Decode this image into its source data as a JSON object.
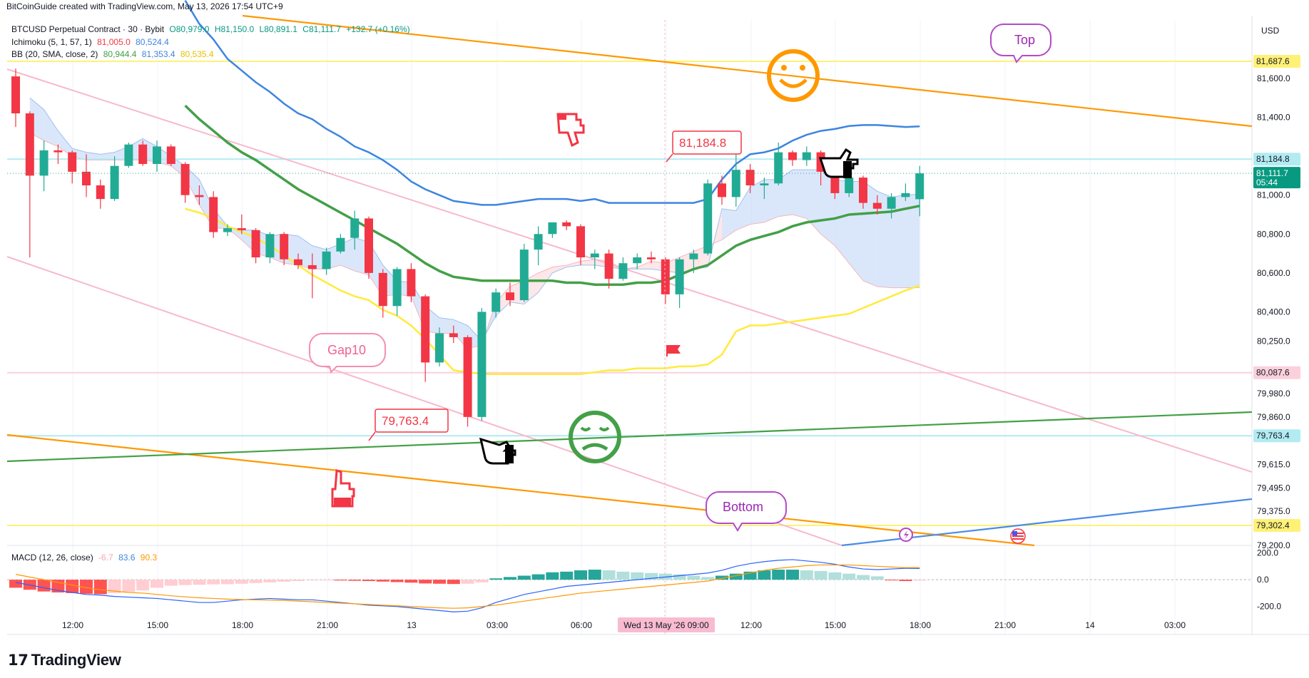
{
  "header": {
    "credit": "BitCoinGuide created with TradingView.com, May 13, 2026 17:54 UTC+9",
    "currency": "USD",
    "brand": "TradingView"
  },
  "legend": {
    "symbol": "BTCUSD Perpetual Contract · 30 · Bybit",
    "ohlc": {
      "o": "O80,979.0",
      "h": "H81,150.0",
      "l": "L80,891.1",
      "c": "C81,111.7",
      "chg": "+132.7 (+0.16%)"
    },
    "ichimoku": {
      "name": "Ichimoku (5, 1, 57, 1)",
      "v1": "81,005.0",
      "v2": "80,524.4"
    },
    "bb": {
      "name": "BB (20, SMA, close, 2)",
      "v1": "80,944.4",
      "v2": "81,353.4",
      "v3": "80,535.4"
    },
    "macd": {
      "name": "MACD (12, 26, close)",
      "v1": "-6.7",
      "v2": "83.6",
      "v3": "90.3"
    }
  },
  "colors": {
    "up": "#22ab94",
    "down": "#f23645",
    "bb_basis": "#43a047",
    "bb_upper": "#3d85e0",
    "bb_lower": "#ffeb3b",
    "cloud_bull": "#bbd3f5",
    "cloud_bear": "#fcd3d6",
    "orange": "#ff9800",
    "pink": "#f7b9cc",
    "green": "#43a047",
    "blue": "#4a8be8",
    "yellow": "#fff176",
    "cyan": "#b2ebf2"
  },
  "chart_data": {
    "type": "candlestick",
    "timeframe": "30",
    "ylim": [
      79200,
      81900
    ],
    "y_ticks": [
      81600,
      81400,
      81184.8,
      81000,
      80800,
      80600,
      80400,
      80250,
      80087.6,
      79980,
      79860,
      79615,
      79495,
      79375,
      79302.4,
      79200
    ],
    "y_tick_labels": [
      "81,600.0",
      "81,400.0",
      "81,184.8",
      "81,000.0",
      "80,800.0",
      "80,600.0",
      "80,400.0",
      "80,250.0",
      "80,087.6",
      "79,980.0",
      "79,860.0",
      "79,615.0",
      "79,495.0",
      "79,375.0",
      "79,302.4",
      "79,200.0"
    ],
    "x_tick_labels": [
      "12:00",
      "15:00",
      "18:00",
      "21:00",
      "13",
      "03:00",
      "06:00",
      "",
      "12:00",
      "15:00",
      "18:00",
      "21:00",
      "14",
      "03:00"
    ],
    "x_cursor_label": "Wed 13 May '26  09:00",
    "price_labels": [
      {
        "value": 81687.6,
        "text": "81,687.6",
        "bg": "#fff176",
        "fg": "#131722"
      },
      {
        "value": 81184.8,
        "text": "81,184.8",
        "bg": "#b2ebf2",
        "fg": "#131722"
      },
      {
        "value": 81111.7,
        "text": "81,111.7",
        "sub": "05:44",
        "bg": "#089981",
        "fg": "#ffffff"
      },
      {
        "value": 80087.6,
        "text": "80,087.6",
        "bg": "#fbd0dc",
        "fg": "#131722"
      },
      {
        "value": 79763.4,
        "text": "79,763.4",
        "bg": "#b2ebf2",
        "fg": "#131722"
      },
      {
        "value": 79302.4,
        "text": "79,302.4",
        "bg": "#fff176",
        "fg": "#131722"
      }
    ],
    "horizontal_lines": [
      {
        "value": 81687.6,
        "color": "#fff176"
      },
      {
        "value": 81184.8,
        "color": "#b2ebf2"
      },
      {
        "value": 80087.6,
        "color": "#fbd0dc"
      },
      {
        "value": 79763.4,
        "color": "#b2ebf2"
      },
      {
        "value": 79302.4,
        "color": "#fff176"
      }
    ],
    "candles": [
      [
        81610,
        81650,
        81350,
        81420
      ],
      [
        81420,
        81430,
        80680,
        81100
      ],
      [
        81100,
        81280,
        81020,
        81230
      ],
      [
        81230,
        81260,
        81160,
        81220
      ],
      [
        81220,
        81230,
        81060,
        81120
      ],
      [
        81120,
        81210,
        80990,
        81050
      ],
      [
        81050,
        81080,
        80930,
        80980
      ],
      [
        80980,
        81200,
        80970,
        81150
      ],
      [
        81150,
        81270,
        81140,
        81260
      ],
      [
        81260,
        81280,
        81150,
        81160
      ],
      [
        81160,
        81280,
        81120,
        81250
      ],
      [
        81250,
        81260,
        81150,
        81160
      ],
      [
        81160,
        81170,
        80960,
        81000
      ],
      [
        81000,
        81050,
        80950,
        80990
      ],
      [
        80990,
        81020,
        80780,
        80810
      ],
      [
        80810,
        80850,
        80790,
        80830
      ],
      [
        80830,
        80900,
        80800,
        80820
      ],
      [
        80820,
        80830,
        80650,
        80680
      ],
      [
        80680,
        80810,
        80650,
        80800
      ],
      [
        80800,
        80810,
        80640,
        80670
      ],
      [
        80670,
        80700,
        80620,
        80640
      ],
      [
        80640,
        80700,
        80470,
        80620
      ],
      [
        80620,
        80730,
        80590,
        80710
      ],
      [
        80710,
        80800,
        80700,
        80780
      ],
      [
        80780,
        80920,
        80720,
        80880
      ],
      [
        80880,
        80890,
        80570,
        80600
      ],
      [
        80600,
        80620,
        80370,
        80430
      ],
      [
        80430,
        80630,
        80380,
        80620
      ],
      [
        80620,
        80650,
        80450,
        80480
      ],
      [
        80480,
        80490,
        80040,
        80140
      ],
      [
        80140,
        80320,
        80120,
        80290
      ],
      [
        80290,
        80330,
        80240,
        80270
      ],
      [
        80270,
        80280,
        79810,
        79860
      ],
      [
        79860,
        80420,
        79840,
        80400
      ],
      [
        80400,
        80520,
        80370,
        80500
      ],
      [
        80500,
        80550,
        80430,
        80460
      ],
      [
        80460,
        80750,
        80450,
        80720
      ],
      [
        80720,
        80840,
        80640,
        80800
      ],
      [
        80800,
        80860,
        80780,
        80860
      ],
      [
        80860,
        80870,
        80820,
        80840
      ],
      [
        80840,
        80850,
        80640,
        80680
      ],
      [
        80680,
        80720,
        80620,
        80700
      ],
      [
        80700,
        80720,
        80520,
        80570
      ],
      [
        80570,
        80680,
        80560,
        80650
      ],
      [
        80650,
        80700,
        80620,
        80680
      ],
      [
        80680,
        80710,
        80650,
        80670
      ],
      [
        80670,
        80680,
        80440,
        80490
      ],
      [
        80490,
        80680,
        80420,
        80670
      ],
      [
        80670,
        80720,
        80600,
        80700
      ],
      [
        80700,
        81080,
        80690,
        81060
      ],
      [
        81060,
        81100,
        80950,
        80990
      ],
      [
        80990,
        81220,
        80940,
        81130
      ],
      [
        81130,
        81160,
        81010,
        81050
      ],
      [
        81050,
        81090,
        80980,
        81060
      ],
      [
        81060,
        81270,
        81050,
        81220
      ],
      [
        81220,
        81230,
        81150,
        81180
      ],
      [
        81180,
        81250,
        81150,
        81220
      ],
      [
        81220,
        81230,
        81050,
        81120
      ],
      [
        81120,
        81130,
        80980,
        81010
      ],
      [
        81010,
        81120,
        80990,
        81090
      ],
      [
        81090,
        81100,
        80930,
        80960
      ],
      [
        80960,
        81000,
        80900,
        80930
      ],
      [
        80930,
        81010,
        80880,
        80990
      ],
      [
        80990,
        81060,
        80970,
        81010
      ],
      [
        80979,
        81150,
        80891.1,
        81111.7
      ]
    ],
    "bb_upper": [
      null,
      null,
      null,
      null,
      null,
      null,
      null,
      null,
      null,
      null,
      null,
      null,
      82000,
      81880,
      81800,
      81700,
      81640,
      81580,
      81530,
      81470,
      81420,
      81390,
      81340,
      81300,
      81250,
      81220,
      81180,
      81130,
      81070,
      81030,
      81000,
      80970,
      80960,
      80950,
      80950,
      80960,
      80970,
      80980,
      80980,
      80980,
      80970,
      80980,
      80960,
      80960,
      80960,
      80960,
      80960,
      80960,
      80960,
      80980,
      81080,
      81160,
      81210,
      81220,
      81240,
      81280,
      81310,
      81330,
      81340,
      81355,
      81360,
      81360,
      81355,
      81350,
      81353.4
    ],
    "bb_lower": [
      null,
      null,
      null,
      null,
      null,
      null,
      null,
      null,
      null,
      null,
      null,
      null,
      80930,
      80910,
      80880,
      80840,
      80810,
      80780,
      80740,
      80690,
      80640,
      80590,
      80550,
      80510,
      80480,
      80460,
      80410,
      80380,
      80330,
      80260,
      80180,
      80100,
      80090,
      80080,
      80080,
      80080,
      80080,
      80080,
      80080,
      80080,
      80080,
      80090,
      80100,
      80100,
      80110,
      80110,
      80110,
      80120,
      80120,
      80130,
      80180,
      80300,
      80330,
      80330,
      80340,
      80350,
      80360,
      80370,
      80380,
      80390,
      80420,
      80450,
      80480,
      80510,
      80535.4
    ],
    "bb_basis": [
      null,
      null,
      null,
      null,
      null,
      null,
      null,
      null,
      null,
      null,
      null,
      null,
      81460,
      81390,
      81330,
      81270,
      81220,
      81180,
      81130,
      81080,
      81030,
      80990,
      80950,
      80910,
      80870,
      80830,
      80790,
      80750,
      80700,
      80650,
      80610,
      80580,
      80570,
      80560,
      80560,
      80560,
      80560,
      80560,
      80560,
      80550,
      80550,
      80540,
      80540,
      80540,
      80550,
      80550,
      80560,
      80590,
      80620,
      80640,
      80690,
      80740,
      80770,
      80790,
      80810,
      80840,
      80860,
      80870,
      80880,
      80900,
      80905,
      80910,
      80915,
      80930,
      80944.4
    ],
    "ichimoku_span_a": [
      null,
      81500,
      81440,
      81330,
      81240,
      81220,
      81210,
      81220,
      81250,
      81290,
      81250,
      81200,
      81150,
      81080,
      80930,
      80840,
      80820,
      80820,
      80790,
      80800,
      80790,
      80740,
      80720,
      80750,
      80780,
      80760,
      80640,
      80560,
      80550,
      80430,
      80370,
      80360,
      80330,
      80250,
      80380,
      80450,
      80440,
      80500,
      80600,
      80630,
      80640,
      80640,
      80630,
      80620,
      80620,
      80620,
      80610,
      80600,
      80620,
      80630,
      80930,
      80920,
      81040,
      81080,
      81080,
      81130,
      81130,
      81130,
      81080,
      81070,
      81070,
      81020,
      80990,
      81000,
      81005
    ],
    "ichimoku_span_b": [
      null,
      81320,
      81280,
      81250,
      81200,
      81180,
      81180,
      81180,
      81180,
      81180,
      81170,
      81150,
      81090,
      80950,
      80830,
      80830,
      80770,
      80700,
      80680,
      80650,
      80640,
      80620,
      80620,
      80640,
      80610,
      80590,
      80480,
      80490,
      80480,
      80300,
      80290,
      80290,
      80210,
      80230,
      80450,
      80530,
      80560,
      80600,
      80630,
      80640,
      80660,
      80670,
      80660,
      80620,
      80630,
      80660,
      80650,
      80680,
      80710,
      80740,
      80770,
      80820,
      80850,
      80860,
      80890,
      80900,
      80880,
      80800,
      80740,
      80650,
      80560,
      80530,
      80524,
      80524,
      80524.4
    ],
    "annotations": [
      {
        "type": "callout",
        "text": "Top"
      },
      {
        "type": "callout",
        "text": "Bottom"
      },
      {
        "type": "callout",
        "text": "Gap10"
      },
      {
        "type": "price_tag",
        "text": "81,184.8"
      },
      {
        "type": "price_tag",
        "text": "79,763.4"
      }
    ],
    "macd": {
      "ylim": [
        -260,
        240
      ],
      "ticks": [
        200,
        0,
        -200
      ],
      "tick_labels": [
        "200.0",
        "0.0",
        "-200.0"
      ],
      "histogram": [
        -60,
        -75,
        -88,
        -95,
        -100,
        -105,
        -108,
        -100,
        -90,
        -80,
        -60,
        -45,
        -40,
        -38,
        -35,
        -34,
        -30,
        -25,
        -20,
        -15,
        -10,
        -5,
        -4,
        -6,
        -8,
        -10,
        -14,
        -18,
        -22,
        -28,
        -30,
        -32,
        -30,
        -20,
        10,
        20,
        30,
        40,
        55,
        60,
        70,
        75,
        70,
        60,
        55,
        50,
        45,
        40,
        30,
        20,
        30,
        45,
        60,
        70,
        75,
        75,
        70,
        65,
        55,
        45,
        35,
        25,
        -5,
        -10,
        -6.7
      ],
      "macd": [
        -20,
        -40,
        -60,
        -80,
        -95,
        -110,
        -115,
        -125,
        -130,
        -135,
        -140,
        -150,
        -160,
        -170,
        -170,
        -160,
        -150,
        -145,
        -140,
        -145,
        -150,
        -150,
        -160,
        -170,
        -180,
        -190,
        -195,
        -200,
        -210,
        -220,
        -230,
        -240,
        -235,
        -210,
        -170,
        -140,
        -110,
        -90,
        -70,
        -50,
        -40,
        -30,
        -20,
        -10,
        0,
        10,
        20,
        30,
        40,
        50,
        70,
        100,
        120,
        135,
        145,
        150,
        140,
        130,
        115,
        95,
        80,
        75,
        80,
        85,
        83.6
      ],
      "signal": [
        40,
        20,
        0,
        -20,
        -40,
        -60,
        -75,
        -85,
        -95,
        -100,
        -110,
        -120,
        -128,
        -135,
        -140,
        -145,
        -148,
        -150,
        -152,
        -155,
        -160,
        -165,
        -170,
        -175,
        -180,
        -185,
        -190,
        -195,
        -200,
        -205,
        -210,
        -213,
        -210,
        -200,
        -190,
        -175,
        -160,
        -145,
        -130,
        -115,
        -100,
        -90,
        -80,
        -70,
        -60,
        -50,
        -40,
        -30,
        -20,
        -10,
        10,
        30,
        50,
        70,
        85,
        95,
        105,
        110,
        110,
        110,
        105,
        100,
        95,
        90,
        90.3
      ]
    }
  }
}
